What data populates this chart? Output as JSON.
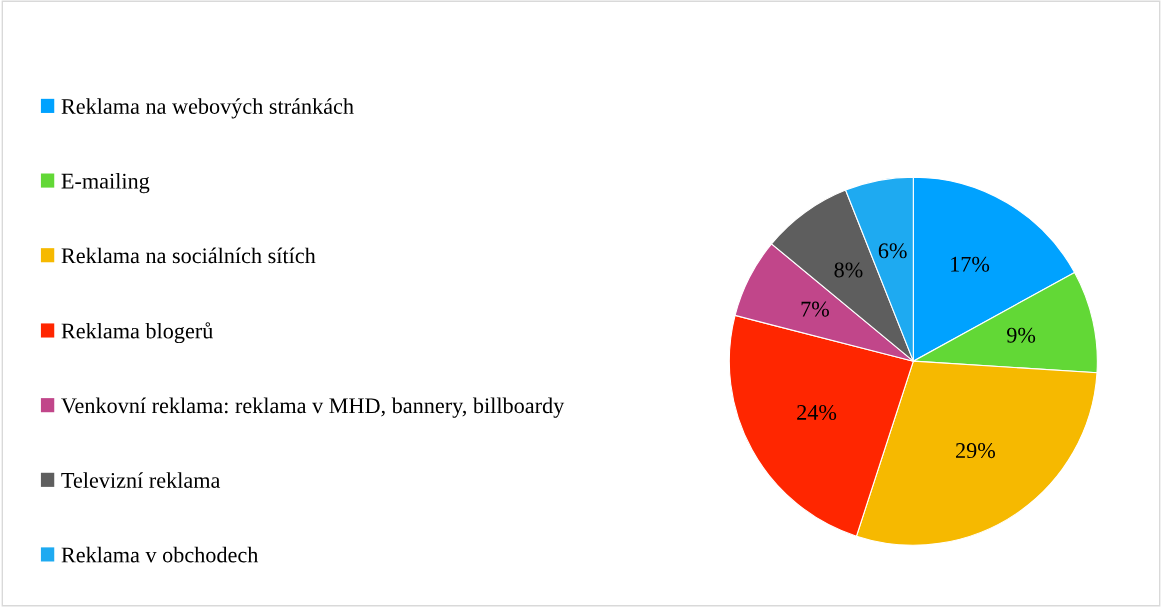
{
  "chart_data": {
    "type": "pie",
    "categories": [
      "Reklama na webových stránkách",
      "E-mailing",
      "Reklama na sociálních sítích",
      "Reklama blogerů",
      "Venkovní reklama: reklama v MHD, bannery, billboardy",
      "Televizní reklama",
      "Reklama v obchodech"
    ],
    "values": [
      17,
      9,
      29,
      24,
      7,
      8,
      6
    ],
    "value_labels": [
      "17%",
      "9%",
      "29%",
      "24%",
      "7%",
      "8%",
      "6%"
    ],
    "colors": [
      "#00a2ff",
      "#62d836",
      "#f6b900",
      "#ff2600",
      "#c1468a",
      "#5e5e5e",
      "#1eaaf1"
    ],
    "legend": "left"
  }
}
